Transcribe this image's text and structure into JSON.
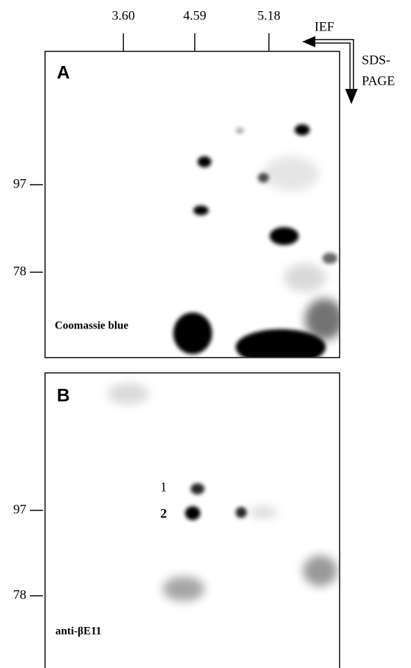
{
  "top_axis": {
    "ticks": [
      "3.60",
      "4.59",
      "5.18"
    ]
  },
  "arrows": {
    "horizontal": "IEF",
    "vertical": [
      "SDS-",
      "PAGE"
    ]
  },
  "panels": [
    {
      "label": "A",
      "y_ticks": [
        "97",
        "78"
      ],
      "stain": "Coomassie blue"
    },
    {
      "label": "B",
      "y_ticks": [
        "97",
        "78"
      ],
      "spots": [
        "1",
        "2"
      ],
      "stain": "anti-βE11"
    }
  ]
}
